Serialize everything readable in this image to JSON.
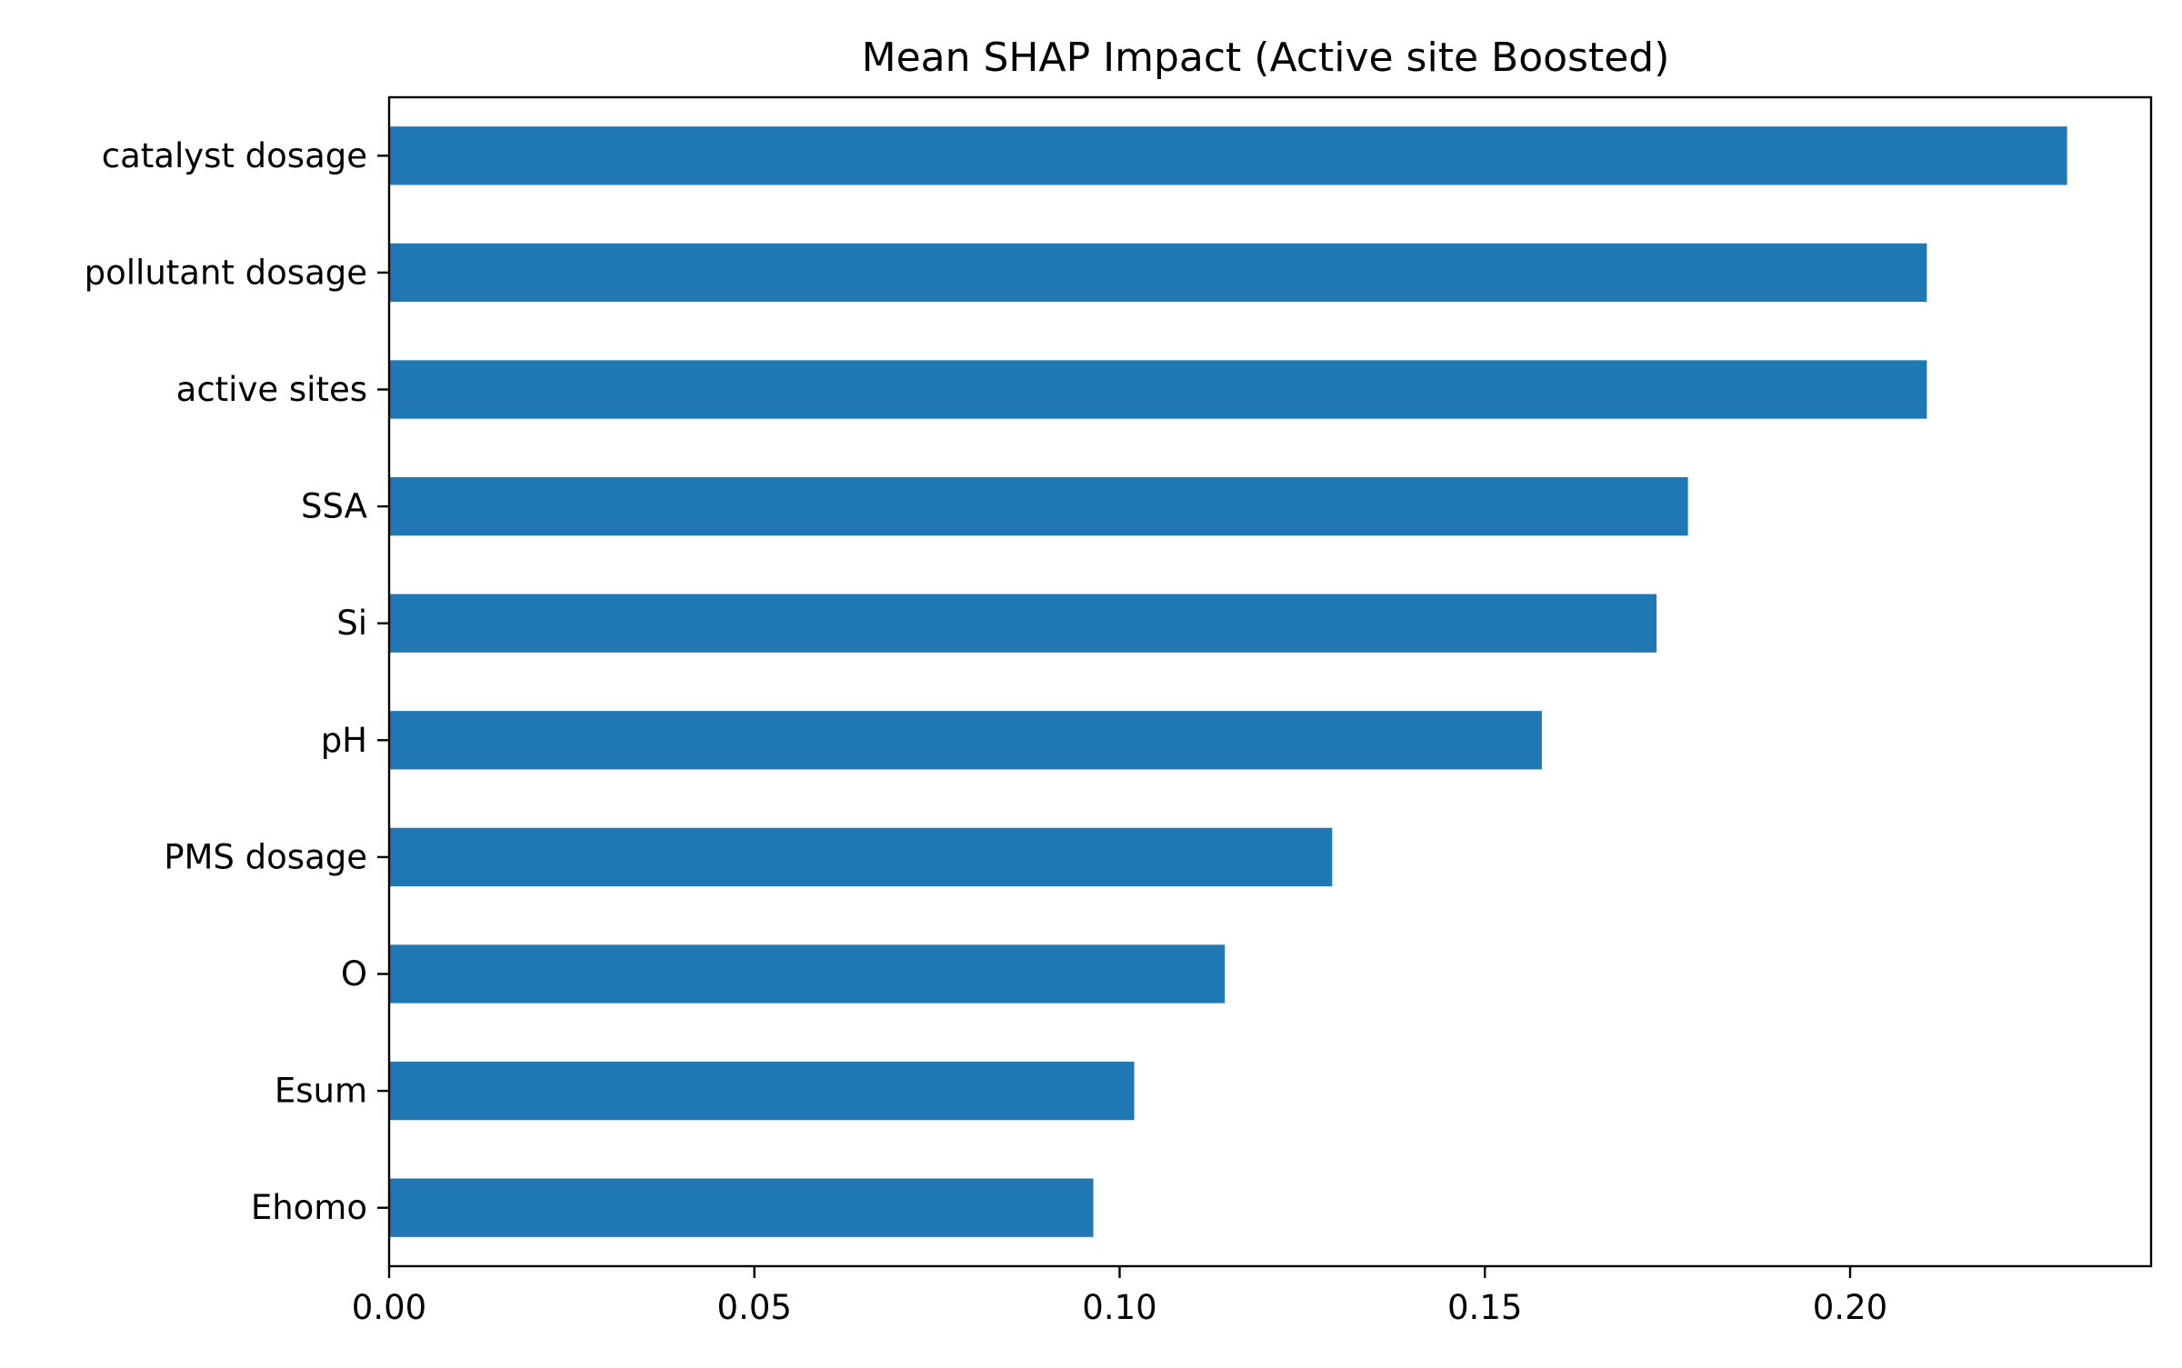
{
  "chart_data": {
    "type": "bar",
    "orientation": "horizontal",
    "title": "Mean SHAP Impact (Active site Boosted)",
    "xlabel": "",
    "ylabel": "",
    "categories": [
      "catalyst dosage",
      "pollutant dosage",
      "active sites",
      "SSA",
      "Si",
      "pH",
      "PMS dosage",
      "O",
      "Esum",
      "Ehomo"
    ],
    "values": [
      0.2297,
      0.2105,
      0.2105,
      0.1778,
      0.1735,
      0.1578,
      0.1291,
      0.1144,
      0.102,
      0.0964
    ],
    "xlim": [
      0,
      0.2412
    ],
    "xticks": [
      "0.00",
      "0.05",
      "0.10",
      "0.15",
      "0.20"
    ],
    "grid": false,
    "colors": {
      "bar": "#1f77b4",
      "axes": "#000000",
      "background": "#ffffff"
    }
  }
}
